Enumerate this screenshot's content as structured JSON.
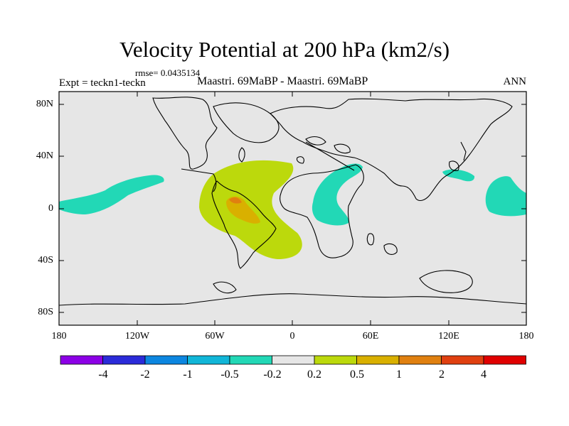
{
  "title": "Velocity Potential at 200 hPa (km2/s)",
  "rmse_label": "rmse= 0.0435134",
  "experiment_label": "Expt = teckn1-teckn",
  "comparison_label": "Maastri.  69MaBP - Maastri.  69MaBP",
  "season_label": "ANN",
  "lat_labels": [
    "80N",
    "40N",
    "0",
    "40S",
    "80S"
  ],
  "lon_labels": [
    "180",
    "120W",
    "60W",
    "0",
    "60E",
    "120E",
    "180"
  ],
  "colorbar": {
    "colors": [
      "#8c00e6",
      "#2b2bd9",
      "#0c86e0",
      "#11b6d8",
      "#22d8b6",
      "#e6e6e6",
      "#bcd90c",
      "#d9b000",
      "#e08010",
      "#e04010",
      "#e00000"
    ],
    "labels": [
      "-4",
      "-2",
      "-1",
      "-0.5",
      "-0.2",
      "0.2",
      "0.5",
      "1",
      "2",
      "4"
    ]
  },
  "colors": {
    "background_field": "#e6e6e6",
    "positive_weak": "#bcd90c",
    "positive_mid": "#d9b000",
    "positive_strong": "#e08010",
    "negative_weak": "#22d8b6"
  }
}
